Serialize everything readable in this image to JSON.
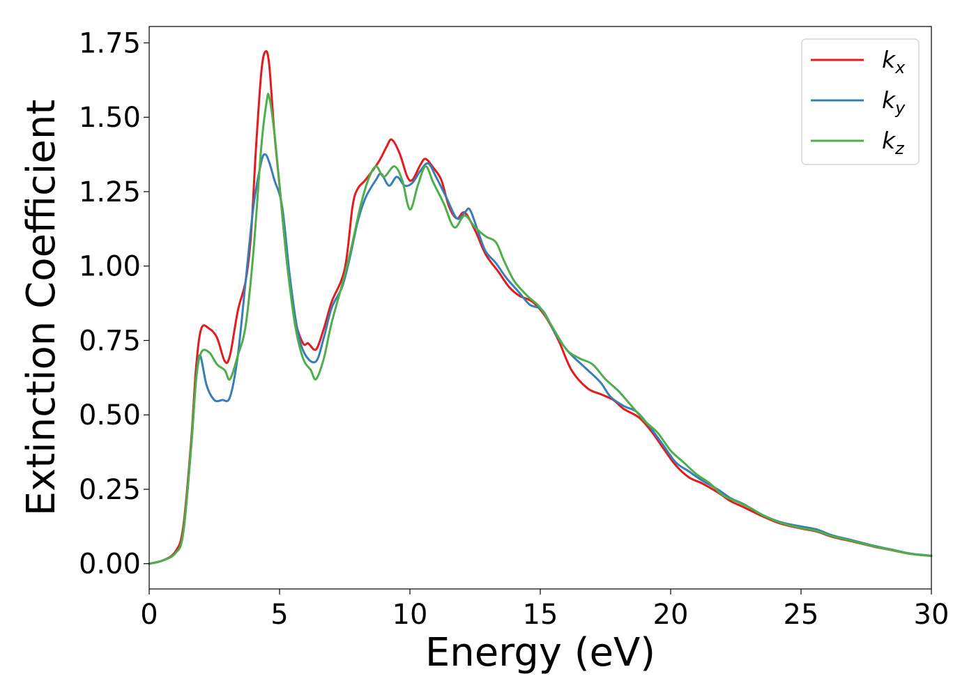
{
  "chart_data": {
    "type": "line",
    "title": "",
    "xlabel": "Energy (eV)",
    "ylabel": "Extinction Coefficient",
    "xlim": [
      0,
      30
    ],
    "ylim": [
      -0.085,
      1.805
    ],
    "xticks": [
      0,
      5,
      10,
      15,
      20,
      25,
      30
    ],
    "xtick_labels": [
      "0",
      "5",
      "10",
      "15",
      "20",
      "25",
      "30"
    ],
    "yticks": [
      0.0,
      0.25,
      0.5,
      0.75,
      1.0,
      1.25,
      1.5,
      1.75
    ],
    "ytick_labels": [
      "0.00",
      "0.25",
      "0.50",
      "0.75",
      "1.00",
      "1.25",
      "1.50",
      "1.75"
    ],
    "grid": false,
    "legend_position": "top-right",
    "series": [
      {
        "name": "k_x",
        "label_main": "k",
        "label_sub": "x",
        "color": "#e41a1c",
        "points": [
          [
            0,
            0.0
          ],
          [
            0.5,
            0.01
          ],
          [
            1.0,
            0.04
          ],
          [
            1.3,
            0.12
          ],
          [
            1.6,
            0.4
          ],
          [
            1.8,
            0.66
          ],
          [
            2.0,
            0.79
          ],
          [
            2.3,
            0.79
          ],
          [
            2.6,
            0.76
          ],
          [
            2.9,
            0.68
          ],
          [
            3.1,
            0.7
          ],
          [
            3.4,
            0.85
          ],
          [
            3.7,
            0.95
          ],
          [
            3.9,
            1.1
          ],
          [
            4.1,
            1.4
          ],
          [
            4.3,
            1.65
          ],
          [
            4.45,
            1.72
          ],
          [
            4.6,
            1.68
          ],
          [
            4.8,
            1.45
          ],
          [
            5.0,
            1.27
          ],
          [
            5.3,
            1.0
          ],
          [
            5.6,
            0.82
          ],
          [
            5.9,
            0.74
          ],
          [
            6.1,
            0.74
          ],
          [
            6.4,
            0.72
          ],
          [
            6.7,
            0.79
          ],
          [
            7.0,
            0.88
          ],
          [
            7.5,
            0.99
          ],
          [
            7.8,
            1.2
          ],
          [
            8.0,
            1.26
          ],
          [
            8.3,
            1.29
          ],
          [
            8.8,
            1.35
          ],
          [
            9.1,
            1.4
          ],
          [
            9.3,
            1.425
          ],
          [
            9.6,
            1.38
          ],
          [
            9.9,
            1.3
          ],
          [
            10.1,
            1.29
          ],
          [
            10.4,
            1.34
          ],
          [
            10.6,
            1.36
          ],
          [
            10.9,
            1.33
          ],
          [
            11.2,
            1.29
          ],
          [
            11.5,
            1.2
          ],
          [
            11.8,
            1.16
          ],
          [
            12.1,
            1.18
          ],
          [
            12.5,
            1.12
          ],
          [
            12.9,
            1.04
          ],
          [
            13.4,
            0.98
          ],
          [
            13.8,
            0.93
          ],
          [
            14.2,
            0.9
          ],
          [
            14.7,
            0.88
          ],
          [
            15.2,
            0.83
          ],
          [
            15.7,
            0.75
          ],
          [
            16.2,
            0.65
          ],
          [
            16.8,
            0.59
          ],
          [
            17.3,
            0.57
          ],
          [
            17.8,
            0.55
          ],
          [
            18.2,
            0.52
          ],
          [
            18.8,
            0.49
          ],
          [
            19.3,
            0.44
          ],
          [
            19.7,
            0.39
          ],
          [
            20.2,
            0.33
          ],
          [
            20.7,
            0.29
          ],
          [
            21.2,
            0.27
          ],
          [
            21.8,
            0.24
          ],
          [
            22.3,
            0.21
          ],
          [
            22.8,
            0.19
          ],
          [
            23.5,
            0.16
          ],
          [
            24.2,
            0.135
          ],
          [
            25.0,
            0.118
          ],
          [
            25.6,
            0.108
          ],
          [
            26.2,
            0.09
          ],
          [
            27.0,
            0.074
          ],
          [
            27.8,
            0.057
          ],
          [
            28.5,
            0.045
          ],
          [
            29.2,
            0.033
          ],
          [
            30.0,
            0.026
          ]
        ]
      },
      {
        "name": "k_y",
        "label_main": "k",
        "label_sub": "y",
        "color": "#377eb8",
        "points": [
          [
            0,
            0.0
          ],
          [
            0.5,
            0.01
          ],
          [
            1.0,
            0.035
          ],
          [
            1.3,
            0.1
          ],
          [
            1.6,
            0.38
          ],
          [
            1.8,
            0.62
          ],
          [
            1.95,
            0.7
          ],
          [
            2.2,
            0.6
          ],
          [
            2.5,
            0.55
          ],
          [
            2.8,
            0.55
          ],
          [
            3.1,
            0.56
          ],
          [
            3.4,
            0.7
          ],
          [
            3.7,
            0.95
          ],
          [
            4.0,
            1.2
          ],
          [
            4.3,
            1.35
          ],
          [
            4.45,
            1.375
          ],
          [
            4.6,
            1.35
          ],
          [
            4.8,
            1.29
          ],
          [
            5.1,
            1.2
          ],
          [
            5.4,
            0.96
          ],
          [
            5.7,
            0.78
          ],
          [
            6.0,
            0.7
          ],
          [
            6.4,
            0.68
          ],
          [
            6.7,
            0.76
          ],
          [
            7.0,
            0.86
          ],
          [
            7.4,
            0.93
          ],
          [
            7.7,
            1.03
          ],
          [
            8.0,
            1.15
          ],
          [
            8.3,
            1.23
          ],
          [
            8.7,
            1.29
          ],
          [
            8.9,
            1.31
          ],
          [
            9.2,
            1.27
          ],
          [
            9.5,
            1.3
          ],
          [
            9.8,
            1.27
          ],
          [
            10.1,
            1.28
          ],
          [
            10.4,
            1.32
          ],
          [
            10.7,
            1.345
          ],
          [
            11.0,
            1.3
          ],
          [
            11.4,
            1.23
          ],
          [
            11.8,
            1.16
          ],
          [
            12.1,
            1.18
          ],
          [
            12.3,
            1.19
          ],
          [
            12.6,
            1.12
          ],
          [
            12.9,
            1.05
          ],
          [
            13.3,
            1.01
          ],
          [
            13.7,
            0.96
          ],
          [
            14.2,
            0.91
          ],
          [
            14.6,
            0.87
          ],
          [
            15.1,
            0.85
          ],
          [
            15.6,
            0.77
          ],
          [
            16.1,
            0.71
          ],
          [
            16.7,
            0.66
          ],
          [
            17.3,
            0.61
          ],
          [
            17.7,
            0.56
          ],
          [
            18.2,
            0.53
          ],
          [
            18.7,
            0.51
          ],
          [
            19.2,
            0.46
          ],
          [
            19.7,
            0.4
          ],
          [
            20.2,
            0.34
          ],
          [
            20.7,
            0.31
          ],
          [
            21.2,
            0.28
          ],
          [
            21.8,
            0.25
          ],
          [
            22.3,
            0.22
          ],
          [
            22.8,
            0.2
          ],
          [
            23.5,
            0.165
          ],
          [
            24.2,
            0.14
          ],
          [
            25.0,
            0.125
          ],
          [
            25.6,
            0.115
          ],
          [
            26.2,
            0.095
          ],
          [
            27.0,
            0.078
          ],
          [
            27.8,
            0.06
          ],
          [
            28.5,
            0.047
          ],
          [
            29.2,
            0.034
          ],
          [
            30.0,
            0.027
          ]
        ]
      },
      {
        "name": "k_z",
        "label_main": "k",
        "label_sub": "z",
        "color": "#4daf4a",
        "points": [
          [
            0,
            0.0
          ],
          [
            0.5,
            0.01
          ],
          [
            1.0,
            0.035
          ],
          [
            1.3,
            0.1
          ],
          [
            1.6,
            0.38
          ],
          [
            1.8,
            0.62
          ],
          [
            2.0,
            0.71
          ],
          [
            2.3,
            0.71
          ],
          [
            2.6,
            0.67
          ],
          [
            2.9,
            0.65
          ],
          [
            3.1,
            0.62
          ],
          [
            3.4,
            0.7
          ],
          [
            3.7,
            0.8
          ],
          [
            4.0,
            1.05
          ],
          [
            4.3,
            1.4
          ],
          [
            4.5,
            1.55
          ],
          [
            4.6,
            1.57
          ],
          [
            4.8,
            1.45
          ],
          [
            5.0,
            1.27
          ],
          [
            5.3,
            1.0
          ],
          [
            5.6,
            0.8
          ],
          [
            5.9,
            0.69
          ],
          [
            6.2,
            0.65
          ],
          [
            6.4,
            0.62
          ],
          [
            6.7,
            0.69
          ],
          [
            7.0,
            0.81
          ],
          [
            7.5,
            0.97
          ],
          [
            7.8,
            1.08
          ],
          [
            8.1,
            1.2
          ],
          [
            8.4,
            1.29
          ],
          [
            8.7,
            1.335
          ],
          [
            9.0,
            1.3
          ],
          [
            9.4,
            1.335
          ],
          [
            9.7,
            1.29
          ],
          [
            10.0,
            1.19
          ],
          [
            10.3,
            1.27
          ],
          [
            10.6,
            1.335
          ],
          [
            10.9,
            1.28
          ],
          [
            11.3,
            1.21
          ],
          [
            11.7,
            1.13
          ],
          [
            12.1,
            1.17
          ],
          [
            12.5,
            1.13
          ],
          [
            12.9,
            1.1
          ],
          [
            13.3,
            1.08
          ],
          [
            13.6,
            1.02
          ],
          [
            14.0,
            0.95
          ],
          [
            14.5,
            0.9
          ],
          [
            15.0,
            0.86
          ],
          [
            15.5,
            0.79
          ],
          [
            16.0,
            0.72
          ],
          [
            16.5,
            0.69
          ],
          [
            17.0,
            0.67
          ],
          [
            17.5,
            0.62
          ],
          [
            18.0,
            0.58
          ],
          [
            18.5,
            0.53
          ],
          [
            19.0,
            0.48
          ],
          [
            19.5,
            0.44
          ],
          [
            20.0,
            0.38
          ],
          [
            20.5,
            0.34
          ],
          [
            21.0,
            0.3
          ],
          [
            21.5,
            0.27
          ],
          [
            22.0,
            0.23
          ],
          [
            22.5,
            0.21
          ],
          [
            23.0,
            0.19
          ],
          [
            23.6,
            0.16
          ],
          [
            24.3,
            0.135
          ],
          [
            25.0,
            0.12
          ],
          [
            25.6,
            0.11
          ],
          [
            26.2,
            0.092
          ],
          [
            27.0,
            0.076
          ],
          [
            27.8,
            0.058
          ],
          [
            28.5,
            0.046
          ],
          [
            29.2,
            0.033
          ],
          [
            30.0,
            0.026
          ]
        ]
      }
    ]
  }
}
